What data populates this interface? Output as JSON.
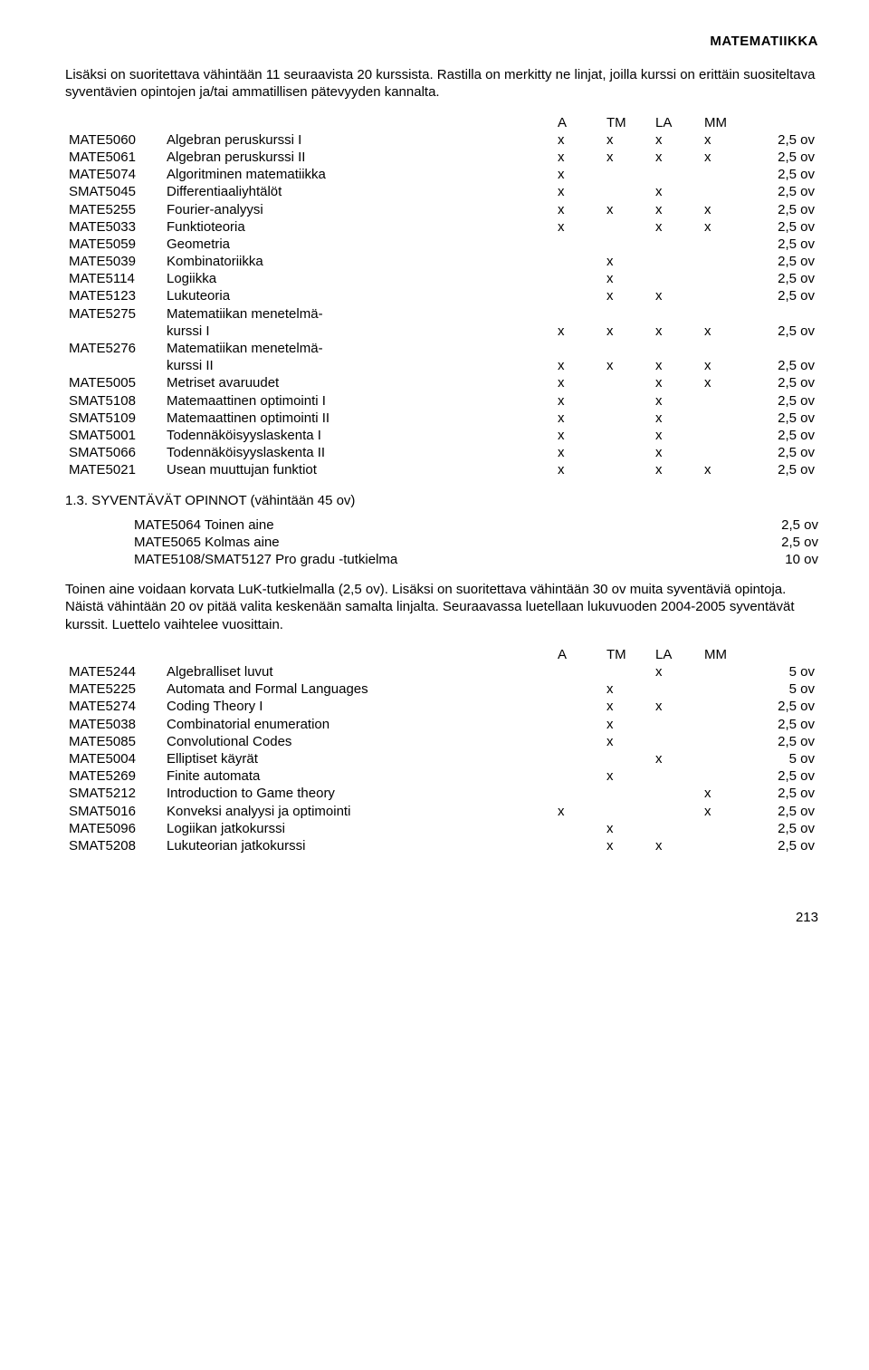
{
  "header": "MATEMATIIKKA",
  "intro": "Lisäksi on suoritettava vähintään 11 seuraavista 20 kurssista. Rastilla on merkitty ne linjat, joilla kurssi on erittäin suositeltava syventävien opintojen ja/tai ammatillisen pätevyyden kannalta.",
  "col_headers": {
    "c1": "A",
    "c2": "TM",
    "c3": "LA",
    "c4": "MM"
  },
  "table1": [
    {
      "code": "MATE5060",
      "name": "Algebran peruskurssi I",
      "c1": "x",
      "c2": "x",
      "c3": "x",
      "c4": "x",
      "credits": "2,5 ov"
    },
    {
      "code": "MATE5061",
      "name": "Algebran peruskurssi II",
      "c1": "x",
      "c2": "x",
      "c3": "x",
      "c4": "x",
      "credits": "2,5 ov"
    },
    {
      "code": "MATE5074",
      "name": "Algoritminen matematiikka",
      "c1": "x",
      "c2": "",
      "c3": "",
      "c4": "",
      "credits": "2,5 ov"
    },
    {
      "code": "SMAT5045",
      "name": "Differentiaaliyhtälöt",
      "c1": "x",
      "c2": "",
      "c3": "x",
      "c4": "",
      "credits": "2,5 ov"
    },
    {
      "code": "MATE5255",
      "name": "Fourier-analyysi",
      "c1": "x",
      "c2": "x",
      "c3": "x",
      "c4": "x",
      "credits": "2,5 ov"
    },
    {
      "code": "MATE5033",
      "name": "Funktioteoria",
      "c1": "x",
      "c2": "",
      "c3": "x",
      "c4": "x",
      "credits": "2,5 ov"
    },
    {
      "code": "MATE5059",
      "name": "Geometria",
      "c1": "",
      "c2": "",
      "c3": "",
      "c4": "",
      "credits": "2,5 ov"
    },
    {
      "code": "MATE5039",
      "name": "Kombinatoriikka",
      "c1": "",
      "c2": "x",
      "c3": "",
      "c4": "",
      "credits": "2,5 ov"
    },
    {
      "code": "MATE5114",
      "name": "Logiikka",
      "c1": "",
      "c2": "x",
      "c3": "",
      "c4": "",
      "credits": "2,5 ov"
    },
    {
      "code": "MATE5123",
      "name": "Lukuteoria",
      "c1": "",
      "c2": "x",
      "c3": "x",
      "c4": "",
      "credits": "2,5 ov"
    },
    {
      "code": "MATE5275",
      "name": "Matematiikan menetelmä-",
      "c1": "",
      "c2": "",
      "c3": "",
      "c4": "",
      "credits": ""
    },
    {
      "code": "",
      "name": "kurssi I",
      "indent": true,
      "c1": "x",
      "c2": "x",
      "c3": "x",
      "c4": "x",
      "credits": "2,5 ov"
    },
    {
      "code": "MATE5276",
      "name": "Matematiikan menetelmä-",
      "c1": "",
      "c2": "",
      "c3": "",
      "c4": "",
      "credits": ""
    },
    {
      "code": "",
      "name": "kurssi II",
      "indent": true,
      "c1": "x",
      "c2": "x",
      "c3": "x",
      "c4": "x",
      "credits": "2,5 ov"
    },
    {
      "code": "MATE5005",
      "name": "Metriset avaruudet",
      "c1": "x",
      "c2": "",
      "c3": "x",
      "c4": "x",
      "credits": "2,5 ov"
    },
    {
      "code": "SMAT5108",
      "name": "Matemaattinen optimointi I",
      "c1": "x",
      "c2": "",
      "c3": "x",
      "c4": "",
      "credits": "2,5 ov"
    },
    {
      "code": "SMAT5109",
      "name": "Matemaattinen optimointi II",
      "c1": "x",
      "c2": "",
      "c3": "x",
      "c4": "",
      "credits": "2,5 ov"
    },
    {
      "code": "SMAT5001",
      "name": "Todennäköisyyslaskenta I",
      "c1": "x",
      "c2": "",
      "c3": "x",
      "c4": "",
      "credits": "2,5 ov"
    },
    {
      "code": "SMAT5066",
      "name": "Todennäköisyyslaskenta II",
      "c1": "x",
      "c2": "",
      "c3": "x",
      "c4": "",
      "credits": "2,5 ov"
    },
    {
      "code": "MATE5021",
      "name": "Usean muuttujan funktiot",
      "c1": "x",
      "c2": "",
      "c3": "x",
      "c4": "x",
      "credits": "2,5 ov"
    }
  ],
  "section13": "1.3. SYVENTÄVÄT OPINNOT (vähintään 45 ov)",
  "syv_list": [
    {
      "label": "MATE5064  Toinen aine",
      "val": "2,5 ov"
    },
    {
      "label": "MATE5065  Kolmas aine",
      "val": "2,5 ov"
    },
    {
      "label": "MATE5108/SMAT5127  Pro gradu -tutkielma",
      "val": "10 ov"
    }
  ],
  "para2": "Toinen aine voidaan korvata LuK-tutkielmalla (2,5 ov). Lisäksi on suoritettava vähintään 30 ov muita syventäviä opintoja. Näistä vähintään 20 ov pitää valita keskenään samalta linjalta. Seuraavassa luetellaan lukuvuoden 2004-2005 syventävät kurssit. Luettelo vaihtelee vuosittain.",
  "table2": [
    {
      "code": "MATE5244",
      "name": "Algebralliset luvut",
      "c1": "",
      "c2": "",
      "c3": "x",
      "c4": "",
      "credits": "5 ov"
    },
    {
      "code": "MATE5225",
      "name": "Automata and Formal Languages",
      "c1": "",
      "c2": "x",
      "c3": "",
      "c4": "",
      "credits": "5 ov"
    },
    {
      "code": "MATE5274",
      "name": "Coding Theory I",
      "c1": "",
      "c2": "x",
      "c3": "x",
      "c4": "",
      "credits": "2,5 ov"
    },
    {
      "code": "MATE5038",
      "name": "Combinatorial enumeration",
      "c1": "",
      "c2": "x",
      "c3": "",
      "c4": "",
      "credits": "2,5 ov"
    },
    {
      "code": "MATE5085",
      "name": "Convolutional Codes",
      "c1": "",
      "c2": "x",
      "c3": "",
      "c4": "",
      "credits": "2,5 ov"
    },
    {
      "code": "MATE5004",
      "name": "Elliptiset käyrät",
      "c1": "",
      "c2": "",
      "c3": "x",
      "c4": "",
      "credits": "5 ov"
    },
    {
      "code": "MATE5269",
      "name": "Finite automata",
      "c1": "",
      "c2": "x",
      "c3": "",
      "c4": "",
      "credits": "2,5 ov"
    },
    {
      "code": "SMAT5212",
      "name": "Introduction to Game theory",
      "c1": "",
      "c2": "",
      "c3": "",
      "c4": "x",
      "credits": "2,5 ov"
    },
    {
      "code": "SMAT5016",
      "name": "Konveksi analyysi ja optimointi",
      "c1": "x",
      "c2": "",
      "c3": "",
      "c4": "x",
      "credits": "2,5 ov"
    },
    {
      "code": "MATE5096",
      "name": "Logiikan jatkokurssi",
      "c1": "",
      "c2": "x",
      "c3": "",
      "c4": "",
      "credits": "2,5 ov"
    },
    {
      "code": "SMAT5208",
      "name": "Lukuteorian jatkokurssi",
      "c1": "",
      "c2": "x",
      "c3": "x",
      "c4": "",
      "credits": "2,5 ov"
    }
  ],
  "pagenum": "213"
}
